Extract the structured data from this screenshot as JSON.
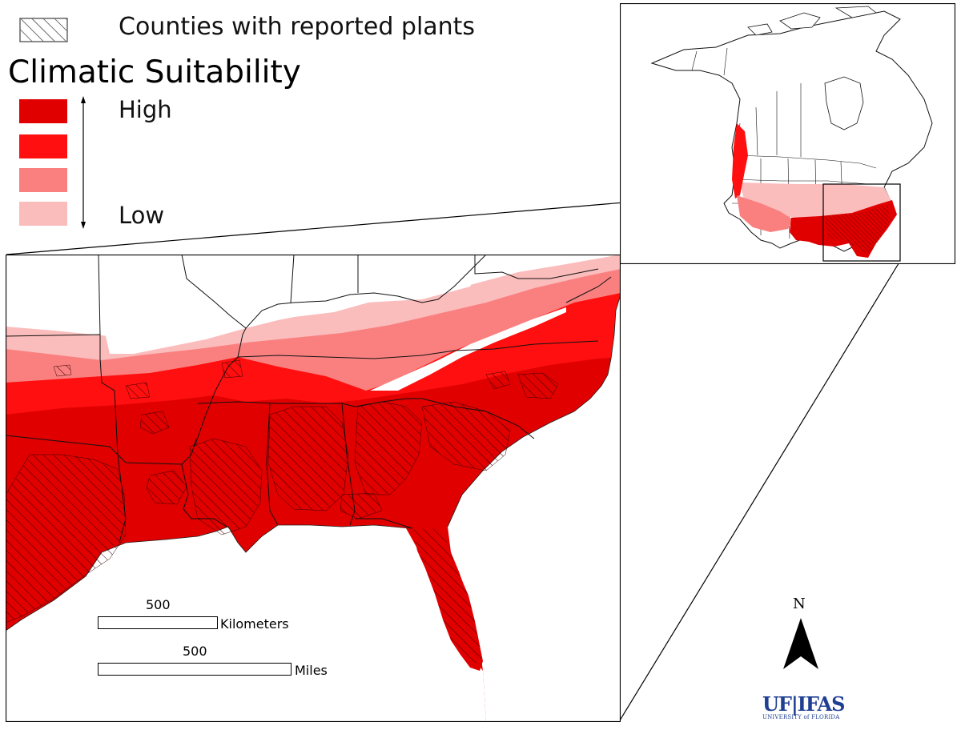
{
  "legend": {
    "hatch_label": "Counties with reported plants",
    "title": "Climatic Suitability",
    "high_label": "High",
    "low_label": "Low",
    "classes": [
      {
        "level": 4,
        "color": "#e00000"
      },
      {
        "level": 3,
        "color": "#ff0f0f"
      },
      {
        "level": 2,
        "color": "#fa8080"
      },
      {
        "level": 1,
        "color": "#fbbcbc"
      }
    ]
  },
  "scale_bar": {
    "km_value": "500",
    "km_unit": "Kilometers",
    "mi_value": "500",
    "mi_unit": "Miles"
  },
  "north_arrow": {
    "label": "N"
  },
  "logo": {
    "main": "UF|IFAS",
    "sub": "UNIVERSITY of FLORIDA"
  },
  "colors": {
    "high": "#e00000",
    "medium_high": "#ff0f0f",
    "medium_low": "#fa8080",
    "low": "#fbbcbc",
    "logo_blue": "#1f3f93"
  }
}
